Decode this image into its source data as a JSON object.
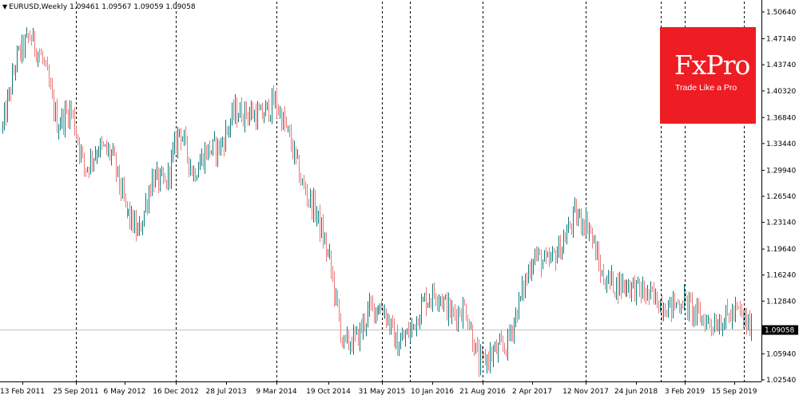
{
  "header": {
    "symbol": "EURUSD,Weekly",
    "ohlc": "1.09461 1.09567 1.09059 1.09058"
  },
  "logo": {
    "brand": "FxPro",
    "slogan": "Trade Like a Pro"
  },
  "colors": {
    "up": "#0e7a7a",
    "down": "#e87a7a",
    "grid": "#000000",
    "axis": "#000000",
    "price_line": "#c0c0c0",
    "price_box": "#000000",
    "logo_bg": "#ee1d23"
  },
  "chart_data": {
    "type": "candlestick",
    "title": "EURUSD,Weekly",
    "y_ticks": [
      "1.50640",
      "1.47140",
      "1.43740",
      "1.40320",
      "1.36840",
      "1.33440",
      "1.29940",
      "1.26540",
      "1.23140",
      "1.19640",
      "1.16240",
      "1.12840",
      "1.09058",
      "1.05940",
      "1.02540"
    ],
    "y_tick_values": [
      1.5064,
      1.4714,
      1.4374,
      1.4032,
      1.3684,
      1.3344,
      1.2994,
      1.2654,
      1.2314,
      1.1964,
      1.1624,
      1.1284,
      1.09058,
      1.0594,
      1.0254
    ],
    "ylim": [
      1.0254,
      1.5064
    ],
    "x_ticks": [
      "13 Feb 2011",
      "25 Sep 2011",
      "6 May 2012",
      "16 Dec 2012",
      "28 Jul 2013",
      "9 Mar 2014",
      "19 Oct 2014",
      "31 May 2015",
      "10 Jan 2016",
      "21 Aug 2016",
      "2 Apr 2017",
      "12 Nov 2017",
      "24 Jun 2018",
      "3 Feb 2019",
      "15 Sep 2019"
    ],
    "grid_x_dates": [
      "25 Sep 2011",
      "16 Dec 2012",
      "9 Mar 2014",
      "31 May 2015",
      "21 Aug 2016",
      "12 Nov 2017",
      "3 Feb 2019"
    ],
    "grid_extra": [
      "end"
    ],
    "last_price": "1.09058",
    "last_price_value": 1.09058,
    "keypoints": [
      {
        "date": "13 Feb 2011",
        "close": 1.355
      },
      {
        "date": "Apr 2011",
        "close": 1.445
      },
      {
        "date": "May 2011",
        "close": 1.475
      },
      {
        "date": "Jul 2011",
        "close": 1.44
      },
      {
        "date": "Sep 2011",
        "close": 1.36
      },
      {
        "date": "Oct 2011",
        "close": 1.38
      },
      {
        "date": "Dec 2011",
        "close": 1.3
      },
      {
        "date": "Feb 2012",
        "close": 1.33
      },
      {
        "date": "Apr 2012",
        "close": 1.32
      },
      {
        "date": "Jun 2012",
        "close": 1.25
      },
      {
        "date": "Jul 2012",
        "close": 1.215
      },
      {
        "date": "Sep 2012",
        "close": 1.29
      },
      {
        "date": "Nov 2012",
        "close": 1.28
      },
      {
        "date": "Feb 2013",
        "close": 1.355
      },
      {
        "date": "Apr 2013",
        "close": 1.295
      },
      {
        "date": "Jun 2013",
        "close": 1.325
      },
      {
        "date": "Aug 2013",
        "close": 1.33
      },
      {
        "date": "Oct 2013",
        "close": 1.375
      },
      {
        "date": "Dec 2013",
        "close": 1.375
      },
      {
        "date": "Feb 2014",
        "close": 1.37
      },
      {
        "date": "May 2014",
        "close": 1.39
      },
      {
        "date": "Jul 2014",
        "close": 1.345
      },
      {
        "date": "Sep 2014",
        "close": 1.28
      },
      {
        "date": "Nov 2014",
        "close": 1.245
      },
      {
        "date": "Jan 2015",
        "close": 1.18
      },
      {
        "date": "Mar 2015",
        "close": 1.07
      },
      {
        "date": "Apr 2015",
        "close": 1.08
      },
      {
        "date": "Jun 2015",
        "close": 1.12
      },
      {
        "date": "Aug 2015",
        "close": 1.12
      },
      {
        "date": "Nov 2015",
        "close": 1.07
      },
      {
        "date": "Jan 2016",
        "close": 1.09
      },
      {
        "date": "Mar 2016",
        "close": 1.13
      },
      {
        "date": "May 2016",
        "close": 1.14
      },
      {
        "date": "Jul 2016",
        "close": 1.11
      },
      {
        "date": "Sep 2016",
        "close": 1.12
      },
      {
        "date": "Dec 2016",
        "close": 1.045
      },
      {
        "date": "Feb 2017",
        "close": 1.06
      },
      {
        "date": "Apr 2017",
        "close": 1.07
      },
      {
        "date": "Jun 2017",
        "close": 1.13
      },
      {
        "date": "Aug 2017",
        "close": 1.19
      },
      {
        "date": "Oct 2017",
        "close": 1.175
      },
      {
        "date": "Dec 2017",
        "close": 1.2
      },
      {
        "date": "Feb 2018",
        "close": 1.24
      },
      {
        "date": "Apr 2018",
        "close": 1.23
      },
      {
        "date": "Jun 2018",
        "close": 1.16
      },
      {
        "date": "Aug 2018",
        "close": 1.15
      },
      {
        "date": "Oct 2018",
        "close": 1.15
      },
      {
        "date": "Dec 2018",
        "close": 1.14
      },
      {
        "date": "Feb 2019",
        "close": 1.13
      },
      {
        "date": "Apr 2019",
        "close": 1.12
      },
      {
        "date": "Jun 2019",
        "close": 1.13
      },
      {
        "date": "Aug 2019",
        "close": 1.11
      },
      {
        "date": "Sep 2019",
        "close": 1.1
      },
      {
        "date": "Nov 2019",
        "close": 1.105
      },
      {
        "date": "Dec 2019",
        "close": 1.115
      },
      {
        "date": "Feb 2020",
        "close": 1.09058
      }
    ]
  }
}
